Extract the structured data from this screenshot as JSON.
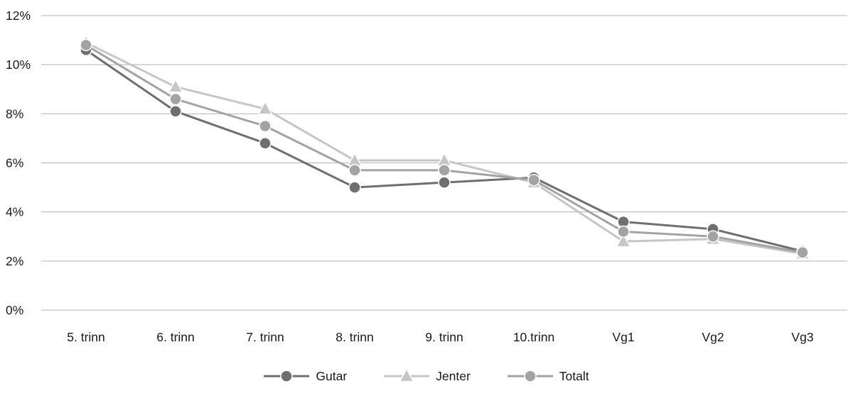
{
  "chart_data": {
    "type": "line",
    "categories": [
      "5. trinn",
      "6. trinn",
      "7. trinn",
      "8. trinn",
      "9. trinn",
      "10.trinn",
      "Vg1",
      "Vg2",
      "Vg3"
    ],
    "series": [
      {
        "name": "Gutar",
        "marker": "circle",
        "color": "#6f6f6f",
        "values": [
          10.6,
          8.1,
          6.8,
          5.0,
          5.2,
          5.4,
          3.6,
          3.3,
          2.4
        ]
      },
      {
        "name": "Jenter",
        "marker": "triangle",
        "color": "#c6c6c6",
        "values": [
          10.9,
          9.1,
          8.2,
          6.1,
          6.1,
          5.2,
          2.8,
          2.9,
          2.3
        ]
      },
      {
        "name": "Totalt",
        "marker": "circle",
        "color": "#a3a3a3",
        "values": [
          10.8,
          8.6,
          7.5,
          5.7,
          5.7,
          5.3,
          3.2,
          3.0,
          2.35
        ]
      }
    ],
    "ylim": [
      0,
      12
    ],
    "ytick_step": 2,
    "ytick_suffix": "%",
    "grid": true,
    "legend_position": "bottom",
    "title": "",
    "xlabel": "",
    "ylabel": ""
  },
  "colors": {
    "background": "#ffffff",
    "gridline": "#b3b3b3",
    "text": "#1a1a1a",
    "marker_outline": "#ffffff"
  }
}
